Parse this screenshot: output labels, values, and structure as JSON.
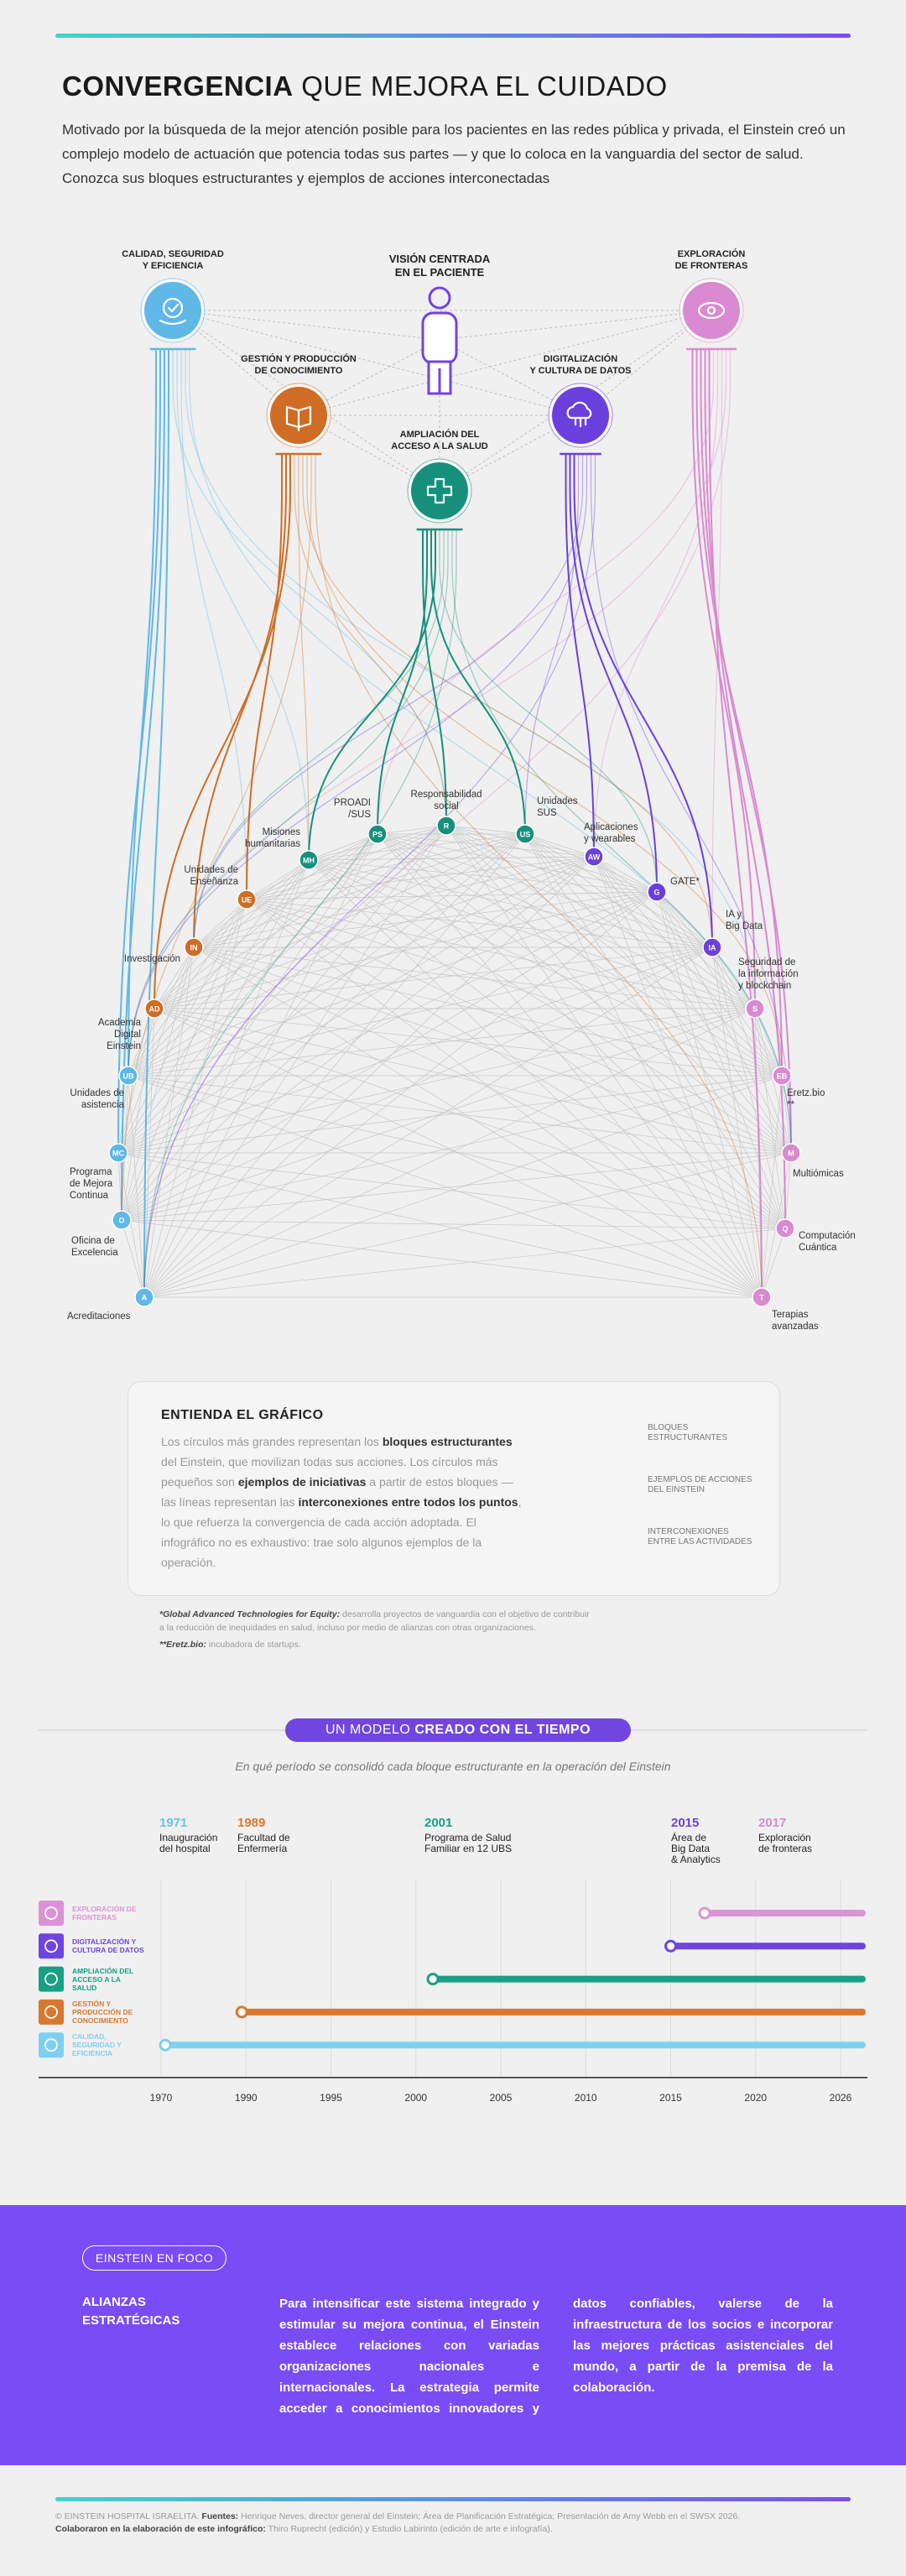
{
  "header": {
    "title_bold": "CONVERGENCIA",
    "title_rest": " QUE MEJORA EL CUIDADO",
    "intro": "Motivado por la búsqueda de la mejor atención posible para los pacientes en las redes pública y privada, el Einstein creó un complejo modelo de actuación que potencia todas sus partes — y que lo coloca en la vanguardia del sector de salud. Conozca sus bloques estructurantes y ejemplos de acciones interconectadas"
  },
  "network": {
    "big_nodes": [
      {
        "label": [
          "CALIDAD, SEGURIDAD",
          "Y EFICIENCIA"
        ],
        "color": "#5fb8e6"
      },
      {
        "label": [
          "VISIÓN CENTRADA",
          "EN EL PACIENTE"
        ],
        "color": "#7146e0"
      },
      {
        "label": [
          "EXPLORACIÓN",
          "DE FRONTERAS"
        ],
        "color": "#d98ad0"
      },
      {
        "label": [
          "GESTIÓN Y PRODUCCIÓN",
          "DE CONOCIMIENTO"
        ],
        "color": "#cf6d24"
      },
      {
        "label": [
          "DIGITALIZACIÓN",
          "Y CULTURA DE DATOS"
        ],
        "color": "#6a40dc"
      },
      {
        "label": [
          "AMPLIACIÓN DEL",
          "ACCESO A LA SALUD"
        ],
        "color": "#16907c"
      }
    ],
    "small_nodes": [
      {
        "abbr": "R",
        "label": [
          "Responsabilidad",
          "social"
        ],
        "color": "#16907c"
      },
      {
        "abbr": "PS",
        "label": [
          "PROADI",
          "/SUS"
        ],
        "color": "#16907c"
      },
      {
        "abbr": "US",
        "label": [
          "Unidades",
          "SUS"
        ],
        "color": "#16907c"
      },
      {
        "abbr": "MH",
        "label": [
          "Misiones",
          "humanitarias"
        ],
        "color": "#16907c"
      },
      {
        "abbr": "AW",
        "label": [
          "Aplicaciones",
          "y wearables"
        ],
        "color": "#6a40dc"
      },
      {
        "abbr": "G",
        "label": [
          "GATE*"
        ],
        "color": "#6a40dc"
      },
      {
        "abbr": "UE",
        "label": [
          "Unidades de",
          "Enseñanza"
        ],
        "color": "#cf6d24"
      },
      {
        "abbr": "IA",
        "label": [
          "IA y",
          "Big Data"
        ],
        "color": "#6a40dc"
      },
      {
        "abbr": "IN",
        "label": [
          "Investigación"
        ],
        "color": "#cf6d24"
      },
      {
        "abbr": "S",
        "label": [
          "Seguridad de",
          "la información",
          "y blockchain"
        ],
        "color": "#d98ad0"
      },
      {
        "abbr": "AD",
        "label": [
          "Academia",
          "Digital",
          "Einstein"
        ],
        "color": "#cf6d24"
      },
      {
        "abbr": "UB",
        "label": [
          "Unidades de",
          "asistencia"
        ],
        "color": "#5fb8e6"
      },
      {
        "abbr": "EB",
        "label": [
          "Eretz.bio",
          "**"
        ],
        "color": "#d98ad0"
      },
      {
        "abbr": "MC",
        "label": [
          "Programa",
          "de Mejora",
          "Continua"
        ],
        "color": "#5fb8e6"
      },
      {
        "abbr": "M",
        "label": [
          "Multiómicas"
        ],
        "color": "#d98ad0"
      },
      {
        "abbr": "O",
        "label": [
          "Oficina de",
          "Excelencia"
        ],
        "color": "#5fb8e6"
      },
      {
        "abbr": "Q",
        "label": [
          "Computación",
          "Cuántica"
        ],
        "color": "#d98ad0"
      },
      {
        "abbr": "A",
        "label": [
          "Acreditaciones"
        ],
        "color": "#5fb8e6"
      },
      {
        "abbr": "T",
        "label": [
          "Terapias",
          "avanzadas"
        ],
        "color": "#d98ad0"
      }
    ]
  },
  "legend_box": {
    "title": "ENTIENDA EL GRÁFICO",
    "text": [
      "Los círculos más grandes representan los ",
      "bloques estructurantes",
      " del Einstein, que movilizan todas sus acciones. Los círculos más pequeños son ",
      "ejemplos de iniciativas",
      " a partir de estos bloques — las líneas representan las ",
      "interconexiones entre todos los puntos",
      ", lo que refuerza la convergencia de cada acción adoptada. El infográfico no es exhaustivo: trae solo algunos ejemplos de la operación."
    ],
    "keys": [
      "BLOQUES ESTRUCTURANTES",
      "EJEMPLOS DE ACCIONES DEL EINSTEIN",
      "INTERCONEXIONES ENTRE LAS ACTIVIDADES"
    ]
  },
  "footnotes": [
    [
      "*Global Advanced Technologies for Equity:",
      " desarrolla proyectos de vanguardia con el objetivo de contribuir a la reducción de inequidades en salud, incluso por medio de alianzas con otras organizaciones."
    ],
    [
      "**Eretz.bio:",
      " incubadora de startups."
    ]
  ],
  "chart_data": {
    "type": "timeline",
    "title": [
      "UN MODELO ",
      "CREADO CON EL TIEMPO"
    ],
    "subtitle": "En qué período se consolidó cada bloque estructurante en la operación del Einstein",
    "milestones": [
      {
        "year": 1971,
        "label": [
          "Inauguración",
          "del hospital"
        ],
        "color": "#5fc4f0"
      },
      {
        "year": 1989,
        "label": [
          "Facultad de",
          "Enfermería"
        ],
        "color": "#d8782e"
      },
      {
        "year": 2001,
        "label": [
          "Programa de Salud",
          "Familiar en 12 UBS"
        ],
        "color": "#16a085"
      },
      {
        "year": 2015,
        "label": [
          "Área de",
          "Big Data",
          "& Analytics"
        ],
        "color": "#6a40dc"
      },
      {
        "year": 2017,
        "label": [
          "Exploración",
          "de fronteras"
        ],
        "color": "#d98ad0"
      }
    ],
    "series": [
      {
        "name": "EXPLORACIÓN DE FRONTERAS",
        "color": "#dc93d4",
        "values": [
          2017
        ]
      },
      {
        "name": "DIGITALIZACIÓN Y CULTURA DE DATOS",
        "color": "#6f45e0",
        "values": [
          2015
        ]
      },
      {
        "name": "AMPLIACIÓN DEL ACCESO A LA SALUD",
        "color": "#18a085",
        "values": [
          2001
        ]
      },
      {
        "name": "GESTIÓN Y PRODUCCIÓN DE CONOCIMIENTO",
        "color": "#d8782e",
        "values": [
          1989
        ]
      },
      {
        "name": "CALIDAD, SEGURIDAD Y EFICIENCIA",
        "color": "#7fcff2",
        "values": [
          1971
        ]
      }
    ],
    "xlim": [
      1970,
      2026
    ],
    "xticks": [
      1970,
      1990,
      1995,
      2000,
      2005,
      2010,
      2015,
      2020,
      2026
    ],
    "grid": true
  },
  "focus": {
    "tag": "EINSTEIN EN FOCO",
    "heading": "ALIANZAS ESTRATÉGICAS",
    "text": "Para intensificar este sistema integrado y estimular su mejora continua, el Einstein establece relaciones con variadas organizaciones nacionales e internacionales. La estrategia permite acceder a conocimientos innovadores y datos confiables, valerse de la infraestructura de los socios e incorporar las mejores prácticas asistenciales del mundo, a partir de la premisa de la colaboración."
  },
  "footer": {
    "line1": [
      "© EINSTEIN HOSPITAL ISRAELITA. ",
      "Fuentes:",
      " Henrique Neves, director general del Einstein; Área de Planificación Estratégica; Presentación de Amy Webb en el SWSX 2026."
    ],
    "line2": [
      "Colaboraron en la elaboración de este infográfico:",
      " Thiro Ruprecht (edición) y Estudio Labirinto (edición de arte e infografía)."
    ]
  }
}
